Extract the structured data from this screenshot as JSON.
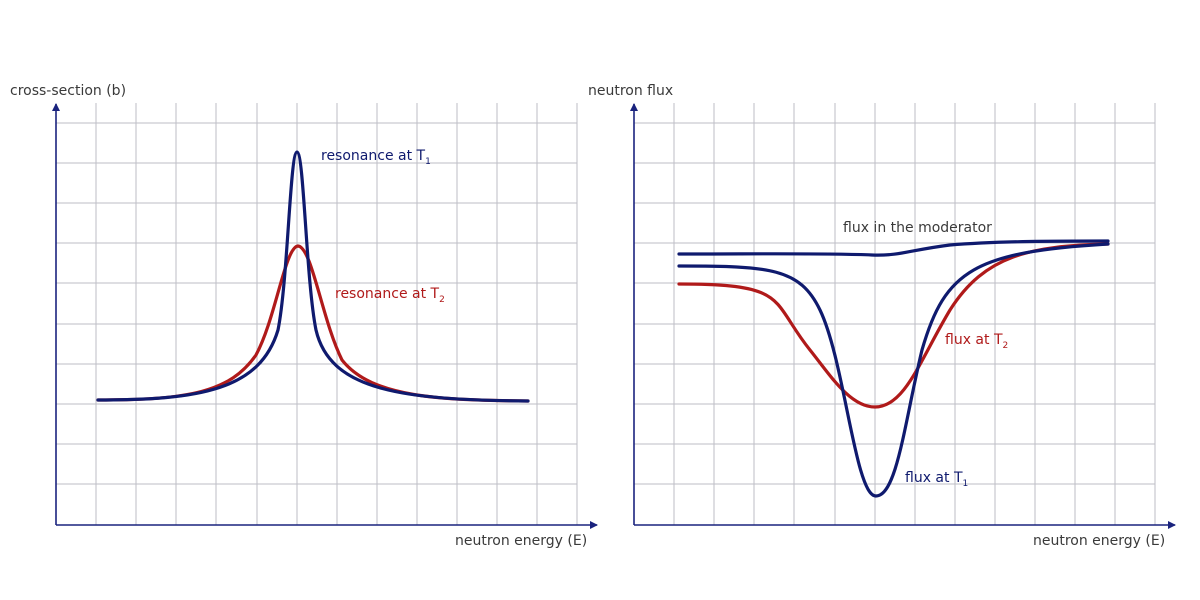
{
  "colors": {
    "navy": "#0f1a6e",
    "red": "#b01a1a",
    "axis": "#1a237e",
    "grid": "#bdbdc6",
    "text": "#3a3a3a"
  },
  "left_panel": {
    "y_axis_label": "cross-section (b)",
    "x_axis_label": "neutron energy (E)",
    "curve_t1": {
      "label_main": "resonance at T",
      "label_sub": "1"
    },
    "curve_t2": {
      "label_main": "resonance at T",
      "label_sub": "2"
    }
  },
  "right_panel": {
    "y_axis_label": "neutron flux",
    "x_axis_label": "neutron energy (E)",
    "moderator": {
      "label": "flux in the moderator"
    },
    "flux_t2": {
      "label_main": "flux at T",
      "label_sub": "2"
    },
    "flux_t1": {
      "label_main": "flux at T",
      "label_sub": "1"
    }
  }
}
